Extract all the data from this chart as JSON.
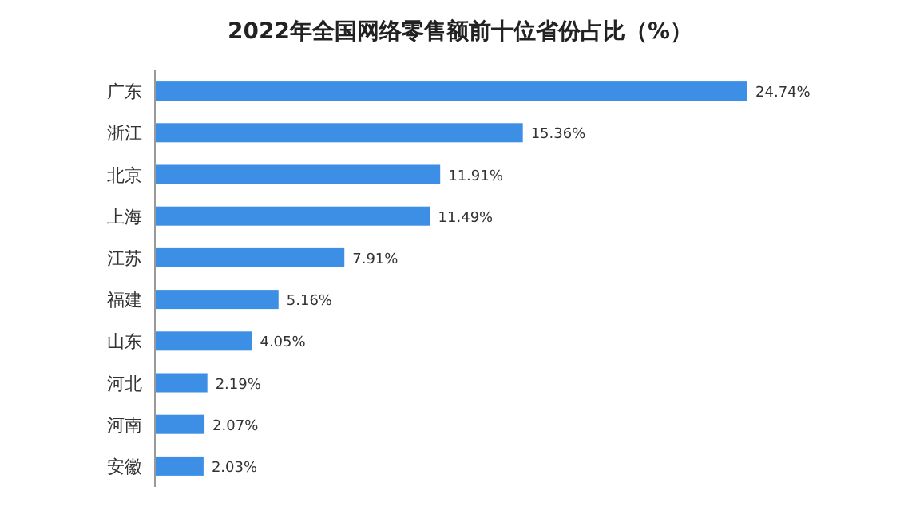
{
  "chart_data": {
    "type": "bar",
    "orientation": "horizontal",
    "title": "2022年全国网络零售额前十位省份占比（%）",
    "categories": [
      "广东",
      "浙江",
      "北京",
      "上海",
      "江苏",
      "福建",
      "山东",
      "河北",
      "河南",
      "安徽"
    ],
    "values": [
      24.74,
      15.36,
      11.91,
      11.49,
      7.91,
      5.16,
      4.05,
      2.19,
      2.07,
      2.03
    ],
    "value_labels": [
      "24.74%",
      "15.36%",
      "11.91%",
      "11.49%",
      "7.91%",
      "5.16%",
      "4.05%",
      "2.19%",
      "2.07%",
      "2.03%"
    ],
    "color": "#3d8fe6"
  }
}
